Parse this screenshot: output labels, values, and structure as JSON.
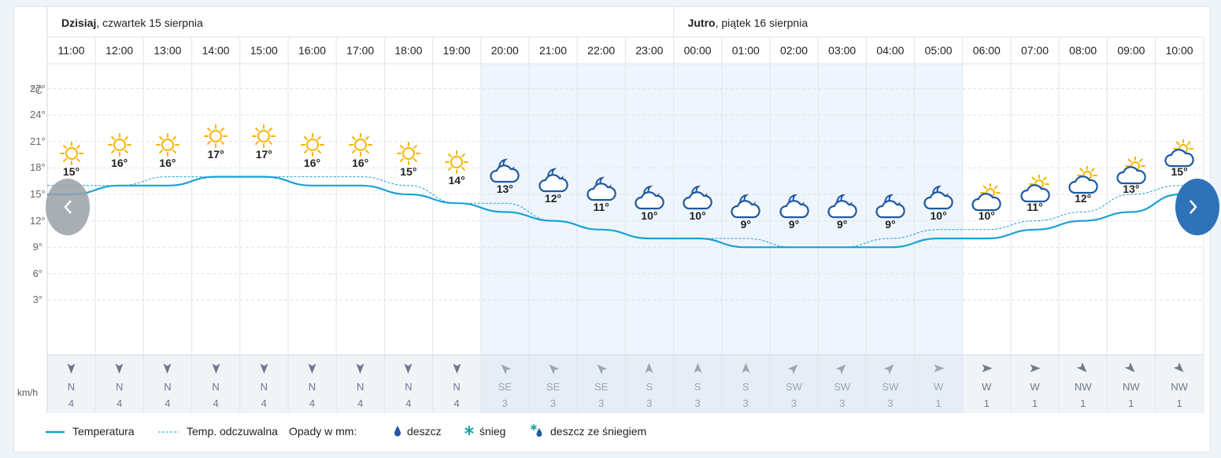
{
  "days": [
    {
      "name": "Dzisiaj",
      "date": ", czwartek 15 sierpnia"
    },
    {
      "name": "Jutro",
      "date": ", piątek 16 sierpnia"
    }
  ],
  "y_axis": {
    "unit": "°C",
    "ticks": [
      "27°",
      "24°",
      "21°",
      "18°",
      "15°",
      "12°",
      "9°",
      "6°",
      "3°"
    ]
  },
  "wind_unit": "km/h",
  "chart_data": {
    "type": "line",
    "x": [
      "11:00",
      "12:00",
      "13:00",
      "14:00",
      "15:00",
      "16:00",
      "17:00",
      "18:00",
      "19:00",
      "20:00",
      "21:00",
      "22:00",
      "23:00",
      "00:00",
      "01:00",
      "02:00",
      "03:00",
      "04:00",
      "05:00",
      "06:00",
      "07:00",
      "08:00",
      "09:00",
      "10:00"
    ],
    "ylim": [
      0,
      30
    ],
    "series": [
      {
        "name": "Temperatura",
        "values": [
          15,
          16,
          16,
          17,
          17,
          16,
          16,
          15,
          14,
          13,
          12,
          11,
          10,
          10,
          9,
          9,
          9,
          9,
          10,
          10,
          11,
          12,
          13,
          15
        ]
      },
      {
        "name": "Temp. odczuwalna",
        "values": [
          16,
          16,
          17,
          17,
          17,
          17,
          17,
          16,
          14,
          14,
          12,
          11,
          10,
          10,
          10,
          9,
          9,
          10,
          11,
          11,
          12,
          13,
          15,
          16
        ]
      }
    ],
    "temperature_labels": [
      "15°",
      "16°",
      "16°",
      "17°",
      "17°",
      "16°",
      "16°",
      "15°",
      "14°",
      "13°",
      "12°",
      "11°",
      "10°",
      "10°",
      "9°",
      "9°",
      "9°",
      "9°",
      "10°",
      "10°",
      "11°",
      "12°",
      "13°",
      "15°"
    ],
    "icons": [
      "sun-icon",
      "sun-icon",
      "sun-icon",
      "sun-icon",
      "sun-icon",
      "sun-icon",
      "sun-icon",
      "sun-icon",
      "sun-icon",
      "moon-cloud-icon",
      "moon-cloud-icon",
      "moon-cloud-icon",
      "moon-cloud-icon",
      "moon-cloud-icon",
      "moon-cloud-icon",
      "moon-cloud-icon",
      "moon-cloud-icon",
      "moon-cloud-icon",
      "moon-cloud-icon",
      "sun-cloud-icon",
      "sun-cloud-icon",
      "sun-cloud-icon",
      "sun-cloud-icon",
      "sun-cloud-icon"
    ],
    "wind_dirs": [
      "N",
      "N",
      "N",
      "N",
      "N",
      "N",
      "N",
      "N",
      "N",
      "SE",
      "SE",
      "SE",
      "S",
      "S",
      "S",
      "SW",
      "SW",
      "SW",
      "W",
      "W",
      "W",
      "NW",
      "NW",
      "NW"
    ],
    "wind_speeds": [
      "4",
      "4",
      "4",
      "4",
      "4",
      "4",
      "4",
      "4",
      "4",
      "3",
      "3",
      "3",
      "3",
      "3",
      "3",
      "3",
      "3",
      "3",
      "1",
      "1",
      "1",
      "1",
      "1",
      "1"
    ],
    "night_range": [
      "20:00",
      "05:00"
    ],
    "grid": true
  },
  "legend": {
    "temperature": "Temperatura",
    "feels_like": "Temp. odczuwalna",
    "precip_title": "Opady w mm:",
    "rain": "deszcz",
    "snow": "śnieg",
    "sleet": "deszcz ze śniegiem"
  },
  "colors": {
    "line": "#19a2d6",
    "sun": "#f6b400",
    "cloud": "#1e5aa0",
    "night_bg": "#eef5fc",
    "wind_day": "#6b7a8c",
    "wind_night": "#9aa7b5",
    "nav": "#2e72b8",
    "nav_left": "#9aa0a6"
  }
}
